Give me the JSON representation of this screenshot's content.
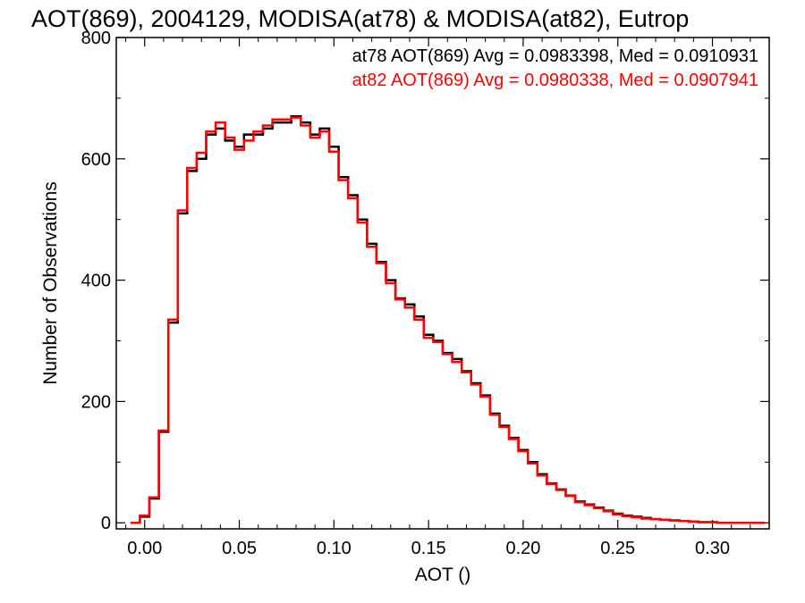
{
  "chart_data": {
    "type": "histogram",
    "title": "AOT(869), 2004129, MODISA(at78) & MODISA(at82), Eutrop",
    "xlabel": "AOT ()",
    "ylabel": "Number of Observations",
    "xlim": [
      -0.015,
      0.33
    ],
    "ylim": [
      -10,
      800
    ],
    "xticks": [
      0.0,
      0.05,
      0.1,
      0.15,
      0.2,
      0.25,
      0.3
    ],
    "xtick_labels": [
      "0.00",
      "0.05",
      "0.10",
      "0.15",
      "0.20",
      "0.25",
      "0.30"
    ],
    "yticks": [
      0,
      200,
      400,
      600,
      800
    ],
    "ytick_labels": [
      "0",
      "200",
      "400",
      "600",
      "800"
    ],
    "grid": false,
    "legend_placement": "top-right",
    "legend_entries": [
      "at78 AOT(869) Avg = 0.0983398, Med = 0.0910931",
      "at82 AOT(869) Avg = 0.0980338, Med = 0.0907941"
    ],
    "colors": {
      "at78": "#000000",
      "at82": "#ff0000"
    },
    "series": [
      {
        "name": "at78",
        "color": "#000000",
        "x": [
          -0.005,
          0.0,
          0.005,
          0.01,
          0.015,
          0.02,
          0.025,
          0.03,
          0.035,
          0.04,
          0.045,
          0.05,
          0.055,
          0.06,
          0.065,
          0.07,
          0.075,
          0.08,
          0.085,
          0.09,
          0.095,
          0.1,
          0.105,
          0.11,
          0.115,
          0.12,
          0.125,
          0.13,
          0.135,
          0.14,
          0.145,
          0.15,
          0.155,
          0.16,
          0.165,
          0.17,
          0.175,
          0.18,
          0.185,
          0.19,
          0.195,
          0.2,
          0.205,
          0.21,
          0.215,
          0.22,
          0.225,
          0.23,
          0.235,
          0.24,
          0.245,
          0.25,
          0.255,
          0.26,
          0.265,
          0.27,
          0.275,
          0.28,
          0.285,
          0.29,
          0.295,
          0.3,
          0.305,
          0.31,
          0.315,
          0.32,
          0.325
        ],
        "y": [
          0,
          10,
          40,
          150,
          330,
          510,
          580,
          600,
          640,
          650,
          630,
          620,
          640,
          640,
          650,
          660,
          660,
          670,
          660,
          640,
          650,
          620,
          570,
          540,
          500,
          460,
          430,
          400,
          370,
          360,
          340,
          310,
          300,
          280,
          270,
          250,
          230,
          210,
          180,
          160,
          140,
          120,
          100,
          80,
          65,
          55,
          45,
          35,
          30,
          25,
          20,
          15,
          12,
          10,
          8,
          6,
          5,
          4,
          3,
          2,
          1,
          1,
          0,
          0,
          0,
          0,
          0
        ]
      },
      {
        "name": "at82",
        "color": "#ff0000",
        "x": [
          -0.005,
          0.0,
          0.005,
          0.01,
          0.015,
          0.02,
          0.025,
          0.03,
          0.035,
          0.04,
          0.045,
          0.05,
          0.055,
          0.06,
          0.065,
          0.07,
          0.075,
          0.08,
          0.085,
          0.09,
          0.095,
          0.1,
          0.105,
          0.11,
          0.115,
          0.12,
          0.125,
          0.13,
          0.135,
          0.14,
          0.145,
          0.15,
          0.155,
          0.16,
          0.165,
          0.17,
          0.175,
          0.18,
          0.185,
          0.19,
          0.195,
          0.2,
          0.205,
          0.21,
          0.215,
          0.22,
          0.225,
          0.23,
          0.235,
          0.24,
          0.245,
          0.25,
          0.255,
          0.26,
          0.265,
          0.27,
          0.275,
          0.28,
          0.285,
          0.29,
          0.295,
          0.3,
          0.305,
          0.31,
          0.315,
          0.32,
          0.325
        ],
        "y": [
          0,
          12,
          42,
          152,
          335,
          515,
          585,
          610,
          645,
          660,
          635,
          615,
          630,
          645,
          655,
          665,
          665,
          668,
          655,
          635,
          645,
          612,
          565,
          535,
          495,
          455,
          428,
          395,
          368,
          355,
          335,
          305,
          298,
          278,
          265,
          248,
          228,
          208,
          178,
          158,
          138,
          118,
          98,
          78,
          64,
          54,
          44,
          34,
          29,
          24,
          19,
          14,
          11,
          9,
          7,
          6,
          5,
          4,
          3,
          2,
          1,
          1,
          0,
          0,
          0,
          0,
          0
        ]
      }
    ]
  }
}
